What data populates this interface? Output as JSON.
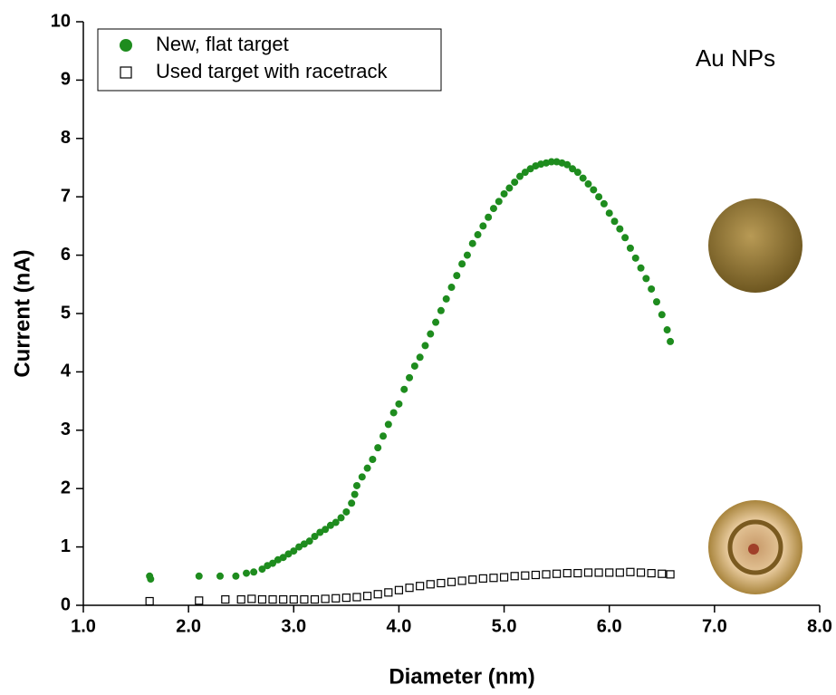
{
  "chart_data": {
    "type": "scatter",
    "x_label": "Diameter (nm)",
    "y_label": "Current (nA)",
    "annotation": "Au NPs",
    "xlim": [
      1,
      8
    ],
    "ylim": [
      0,
      10
    ],
    "xticks": [
      {
        "value": 1,
        "label": "1.0"
      },
      {
        "value": 2,
        "label": "2.0"
      },
      {
        "value": 3,
        "label": "3.0"
      },
      {
        "value": 4,
        "label": "4.0"
      },
      {
        "value": 5,
        "label": "5.0"
      },
      {
        "value": 6,
        "label": "6.0"
      },
      {
        "value": 7,
        "label": "7.0"
      },
      {
        "value": 8,
        "label": "8.0"
      }
    ],
    "yticks": [
      0,
      1,
      2,
      3,
      4,
      5,
      6,
      7,
      8,
      9,
      10
    ],
    "legend": "upper left",
    "series": [
      {
        "name": "New, flat target",
        "color": "#1e8c1e",
        "marker": "circle",
        "x": [
          1.63,
          1.64,
          2.1,
          2.3,
          2.45,
          2.55,
          2.62,
          2.7,
          2.75,
          2.8,
          2.85,
          2.9,
          2.95,
          3.0,
          3.05,
          3.1,
          3.15,
          3.2,
          3.25,
          3.3,
          3.35,
          3.4,
          3.45,
          3.5,
          3.55,
          3.58,
          3.6,
          3.65,
          3.7,
          3.75,
          3.8,
          3.85,
          3.9,
          3.95,
          4.0,
          4.05,
          4.1,
          4.15,
          4.2,
          4.25,
          4.3,
          4.35,
          4.4,
          4.45,
          4.5,
          4.55,
          4.6,
          4.65,
          4.7,
          4.75,
          4.8,
          4.85,
          4.9,
          4.95,
          5.0,
          5.05,
          5.1,
          5.15,
          5.2,
          5.25,
          5.3,
          5.35,
          5.4,
          5.45,
          5.5,
          5.55,
          5.6,
          5.65,
          5.7,
          5.75,
          5.8,
          5.85,
          5.9,
          5.95,
          6.0,
          6.05,
          6.1,
          6.15,
          6.2,
          6.25,
          6.3,
          6.35,
          6.4,
          6.45,
          6.5,
          6.55,
          6.58
        ],
        "values": [
          0.5,
          0.45,
          0.5,
          0.5,
          0.5,
          0.55,
          0.57,
          0.62,
          0.68,
          0.72,
          0.78,
          0.82,
          0.88,
          0.93,
          1.0,
          1.05,
          1.1,
          1.18,
          1.25,
          1.3,
          1.37,
          1.42,
          1.5,
          1.6,
          1.75,
          1.9,
          2.05,
          2.2,
          2.35,
          2.5,
          2.7,
          2.9,
          3.1,
          3.3,
          3.45,
          3.7,
          3.9,
          4.1,
          4.25,
          4.45,
          4.65,
          4.85,
          5.05,
          5.25,
          5.45,
          5.65,
          5.85,
          6.0,
          6.2,
          6.35,
          6.5,
          6.65,
          6.8,
          6.92,
          7.05,
          7.15,
          7.25,
          7.35,
          7.42,
          7.48,
          7.53,
          7.56,
          7.58,
          7.6,
          7.6,
          7.58,
          7.55,
          7.48,
          7.42,
          7.32,
          7.22,
          7.12,
          7.0,
          6.88,
          6.72,
          6.58,
          6.45,
          6.3,
          6.12,
          5.95,
          5.78,
          5.6,
          5.42,
          5.2,
          4.98,
          4.72,
          4.52
        ]
      },
      {
        "name": "Used target with racetrack",
        "color": "#000000",
        "marker": "square",
        "x": [
          1.63,
          2.1,
          2.35,
          2.5,
          2.6,
          2.7,
          2.8,
          2.9,
          3.0,
          3.1,
          3.2,
          3.3,
          3.4,
          3.5,
          3.6,
          3.7,
          3.8,
          3.9,
          4.0,
          4.1,
          4.2,
          4.3,
          4.4,
          4.5,
          4.6,
          4.7,
          4.8,
          4.9,
          5.0,
          5.1,
          5.2,
          5.3,
          5.4,
          5.5,
          5.6,
          5.7,
          5.8,
          5.9,
          6.0,
          6.1,
          6.2,
          6.3,
          6.4,
          6.5,
          6.58
        ],
        "values": [
          0.07,
          0.08,
          0.1,
          0.1,
          0.11,
          0.1,
          0.1,
          0.1,
          0.1,
          0.1,
          0.1,
          0.11,
          0.12,
          0.13,
          0.14,
          0.16,
          0.19,
          0.22,
          0.26,
          0.3,
          0.33,
          0.36,
          0.38,
          0.4,
          0.42,
          0.44,
          0.46,
          0.47,
          0.48,
          0.5,
          0.51,
          0.52,
          0.53,
          0.54,
          0.55,
          0.55,
          0.56,
          0.56,
          0.56,
          0.56,
          0.57,
          0.56,
          0.55,
          0.54,
          0.53
        ]
      }
    ]
  }
}
